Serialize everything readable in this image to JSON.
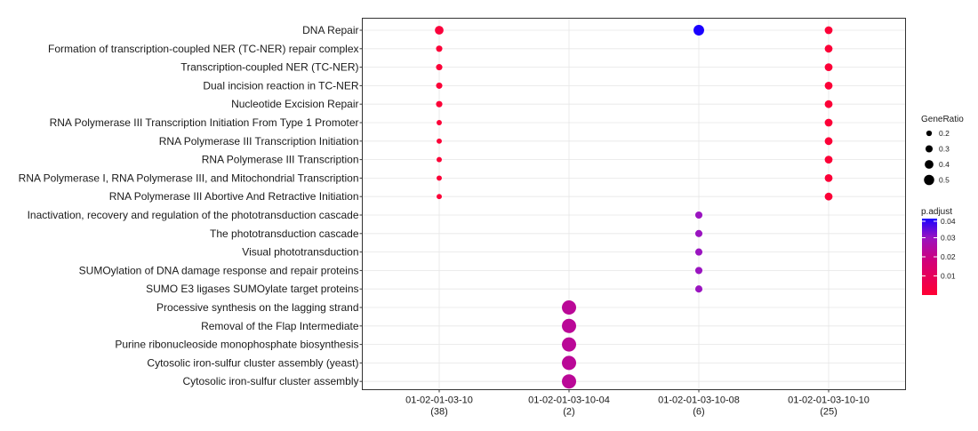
{
  "chart_data": {
    "type": "scatter",
    "title": "",
    "xlabel": "",
    "ylabel": "",
    "grid": true,
    "categories": [
      {
        "id": "01-02-01-03-10",
        "count": "(38)"
      },
      {
        "id": "01-02-01-03-10-04",
        "count": "(2)"
      },
      {
        "id": "01-02-01-03-10-08",
        "count": "(6)"
      },
      {
        "id": "01-02-01-03-10-10",
        "count": "(25)"
      }
    ],
    "terms": [
      "DNA Repair",
      "Formation of transcription-coupled NER (TC-NER) repair complex",
      "Transcription-coupled NER (TC-NER)",
      "Dual incision reaction in TC-NER",
      "Nucleotide Excision Repair",
      "RNA Polymerase III Transcription Initiation From Type 1 Promoter",
      "RNA Polymerase III Transcription Initiation",
      "RNA Polymerase III Transcription",
      "RNA Polymerase I, RNA Polymerase III, and Mitochondrial Transcription",
      "RNA Polymerase III Abortive And Retractive Initiation",
      "Inactivation, recovery and regulation of the phototransduction cascade",
      "The phototransduction cascade",
      "Visual phototransduction",
      "SUMOylation of DNA damage response and repair proteins",
      "SUMO E3 ligases SUMOylate target proteins",
      "Processive synthesis on the lagging strand",
      "Removal of the Flap Intermediate",
      "Purine ribonucleoside monophosphate biosynthesis",
      "Cytosolic iron-sulfur cluster assembly (yeast)",
      "Cytosolic iron-sulfur cluster assembly"
    ],
    "points": [
      {
        "x": 0,
        "y": 0,
        "gene_ratio": 0.24,
        "p_adjust": 0.002
      },
      {
        "x": 0,
        "y": 1,
        "gene_ratio": 0.13,
        "p_adjust": 0.001
      },
      {
        "x": 0,
        "y": 2,
        "gene_ratio": 0.13,
        "p_adjust": 0.001
      },
      {
        "x": 0,
        "y": 3,
        "gene_ratio": 0.13,
        "p_adjust": 0.001
      },
      {
        "x": 0,
        "y": 4,
        "gene_ratio": 0.13,
        "p_adjust": 0.001
      },
      {
        "x": 0,
        "y": 5,
        "gene_ratio": 0.08,
        "p_adjust": 0.001
      },
      {
        "x": 0,
        "y": 6,
        "gene_ratio": 0.08,
        "p_adjust": 0.001
      },
      {
        "x": 0,
        "y": 7,
        "gene_ratio": 0.08,
        "p_adjust": 0.001
      },
      {
        "x": 0,
        "y": 8,
        "gene_ratio": 0.08,
        "p_adjust": 0.001
      },
      {
        "x": 0,
        "y": 9,
        "gene_ratio": 0.08,
        "p_adjust": 0.001
      },
      {
        "x": 1,
        "y": 15,
        "gene_ratio": 0.5,
        "p_adjust": 0.023
      },
      {
        "x": 1,
        "y": 16,
        "gene_ratio": 0.5,
        "p_adjust": 0.023
      },
      {
        "x": 1,
        "y": 17,
        "gene_ratio": 0.5,
        "p_adjust": 0.023
      },
      {
        "x": 1,
        "y": 18,
        "gene_ratio": 0.5,
        "p_adjust": 0.023
      },
      {
        "x": 1,
        "y": 19,
        "gene_ratio": 0.5,
        "p_adjust": 0.023
      },
      {
        "x": 2,
        "y": 0,
        "gene_ratio": 0.33,
        "p_adjust": 0.04
      },
      {
        "x": 2,
        "y": 10,
        "gene_ratio": 0.17,
        "p_adjust": 0.03
      },
      {
        "x": 2,
        "y": 11,
        "gene_ratio": 0.17,
        "p_adjust": 0.03
      },
      {
        "x": 2,
        "y": 12,
        "gene_ratio": 0.17,
        "p_adjust": 0.03
      },
      {
        "x": 2,
        "y": 13,
        "gene_ratio": 0.17,
        "p_adjust": 0.03
      },
      {
        "x": 2,
        "y": 14,
        "gene_ratio": 0.17,
        "p_adjust": 0.03
      },
      {
        "x": 3,
        "y": 0,
        "gene_ratio": 0.2,
        "p_adjust": 0.001
      },
      {
        "x": 3,
        "y": 1,
        "gene_ratio": 0.2,
        "p_adjust": 0.001
      },
      {
        "x": 3,
        "y": 2,
        "gene_ratio": 0.2,
        "p_adjust": 0.001
      },
      {
        "x": 3,
        "y": 3,
        "gene_ratio": 0.2,
        "p_adjust": 0.001
      },
      {
        "x": 3,
        "y": 4,
        "gene_ratio": 0.2,
        "p_adjust": 0.001
      },
      {
        "x": 3,
        "y": 5,
        "gene_ratio": 0.2,
        "p_adjust": 0.001
      },
      {
        "x": 3,
        "y": 6,
        "gene_ratio": 0.2,
        "p_adjust": 0.001
      },
      {
        "x": 3,
        "y": 7,
        "gene_ratio": 0.2,
        "p_adjust": 0.001
      },
      {
        "x": 3,
        "y": 8,
        "gene_ratio": 0.2,
        "p_adjust": 0.001
      },
      {
        "x": 3,
        "y": 9,
        "gene_ratio": 0.2,
        "p_adjust": 0.001
      }
    ],
    "size_legend": {
      "title": "GeneRatio",
      "values": [
        0.2,
        0.3,
        0.4,
        0.5
      ],
      "labels": [
        "0.2",
        "0.3",
        "0.4",
        "0.5"
      ]
    },
    "color_legend": {
      "title": "p.adjust",
      "range": [
        0.0,
        0.04
      ],
      "ticks": [
        0.01,
        0.02,
        0.03,
        0.04
      ],
      "labels": [
        "0.01",
        "0.02",
        "0.03",
        "0.04"
      ],
      "low_color": "#ff0000",
      "high_color": "#0000ff"
    },
    "legend_position": "right"
  }
}
